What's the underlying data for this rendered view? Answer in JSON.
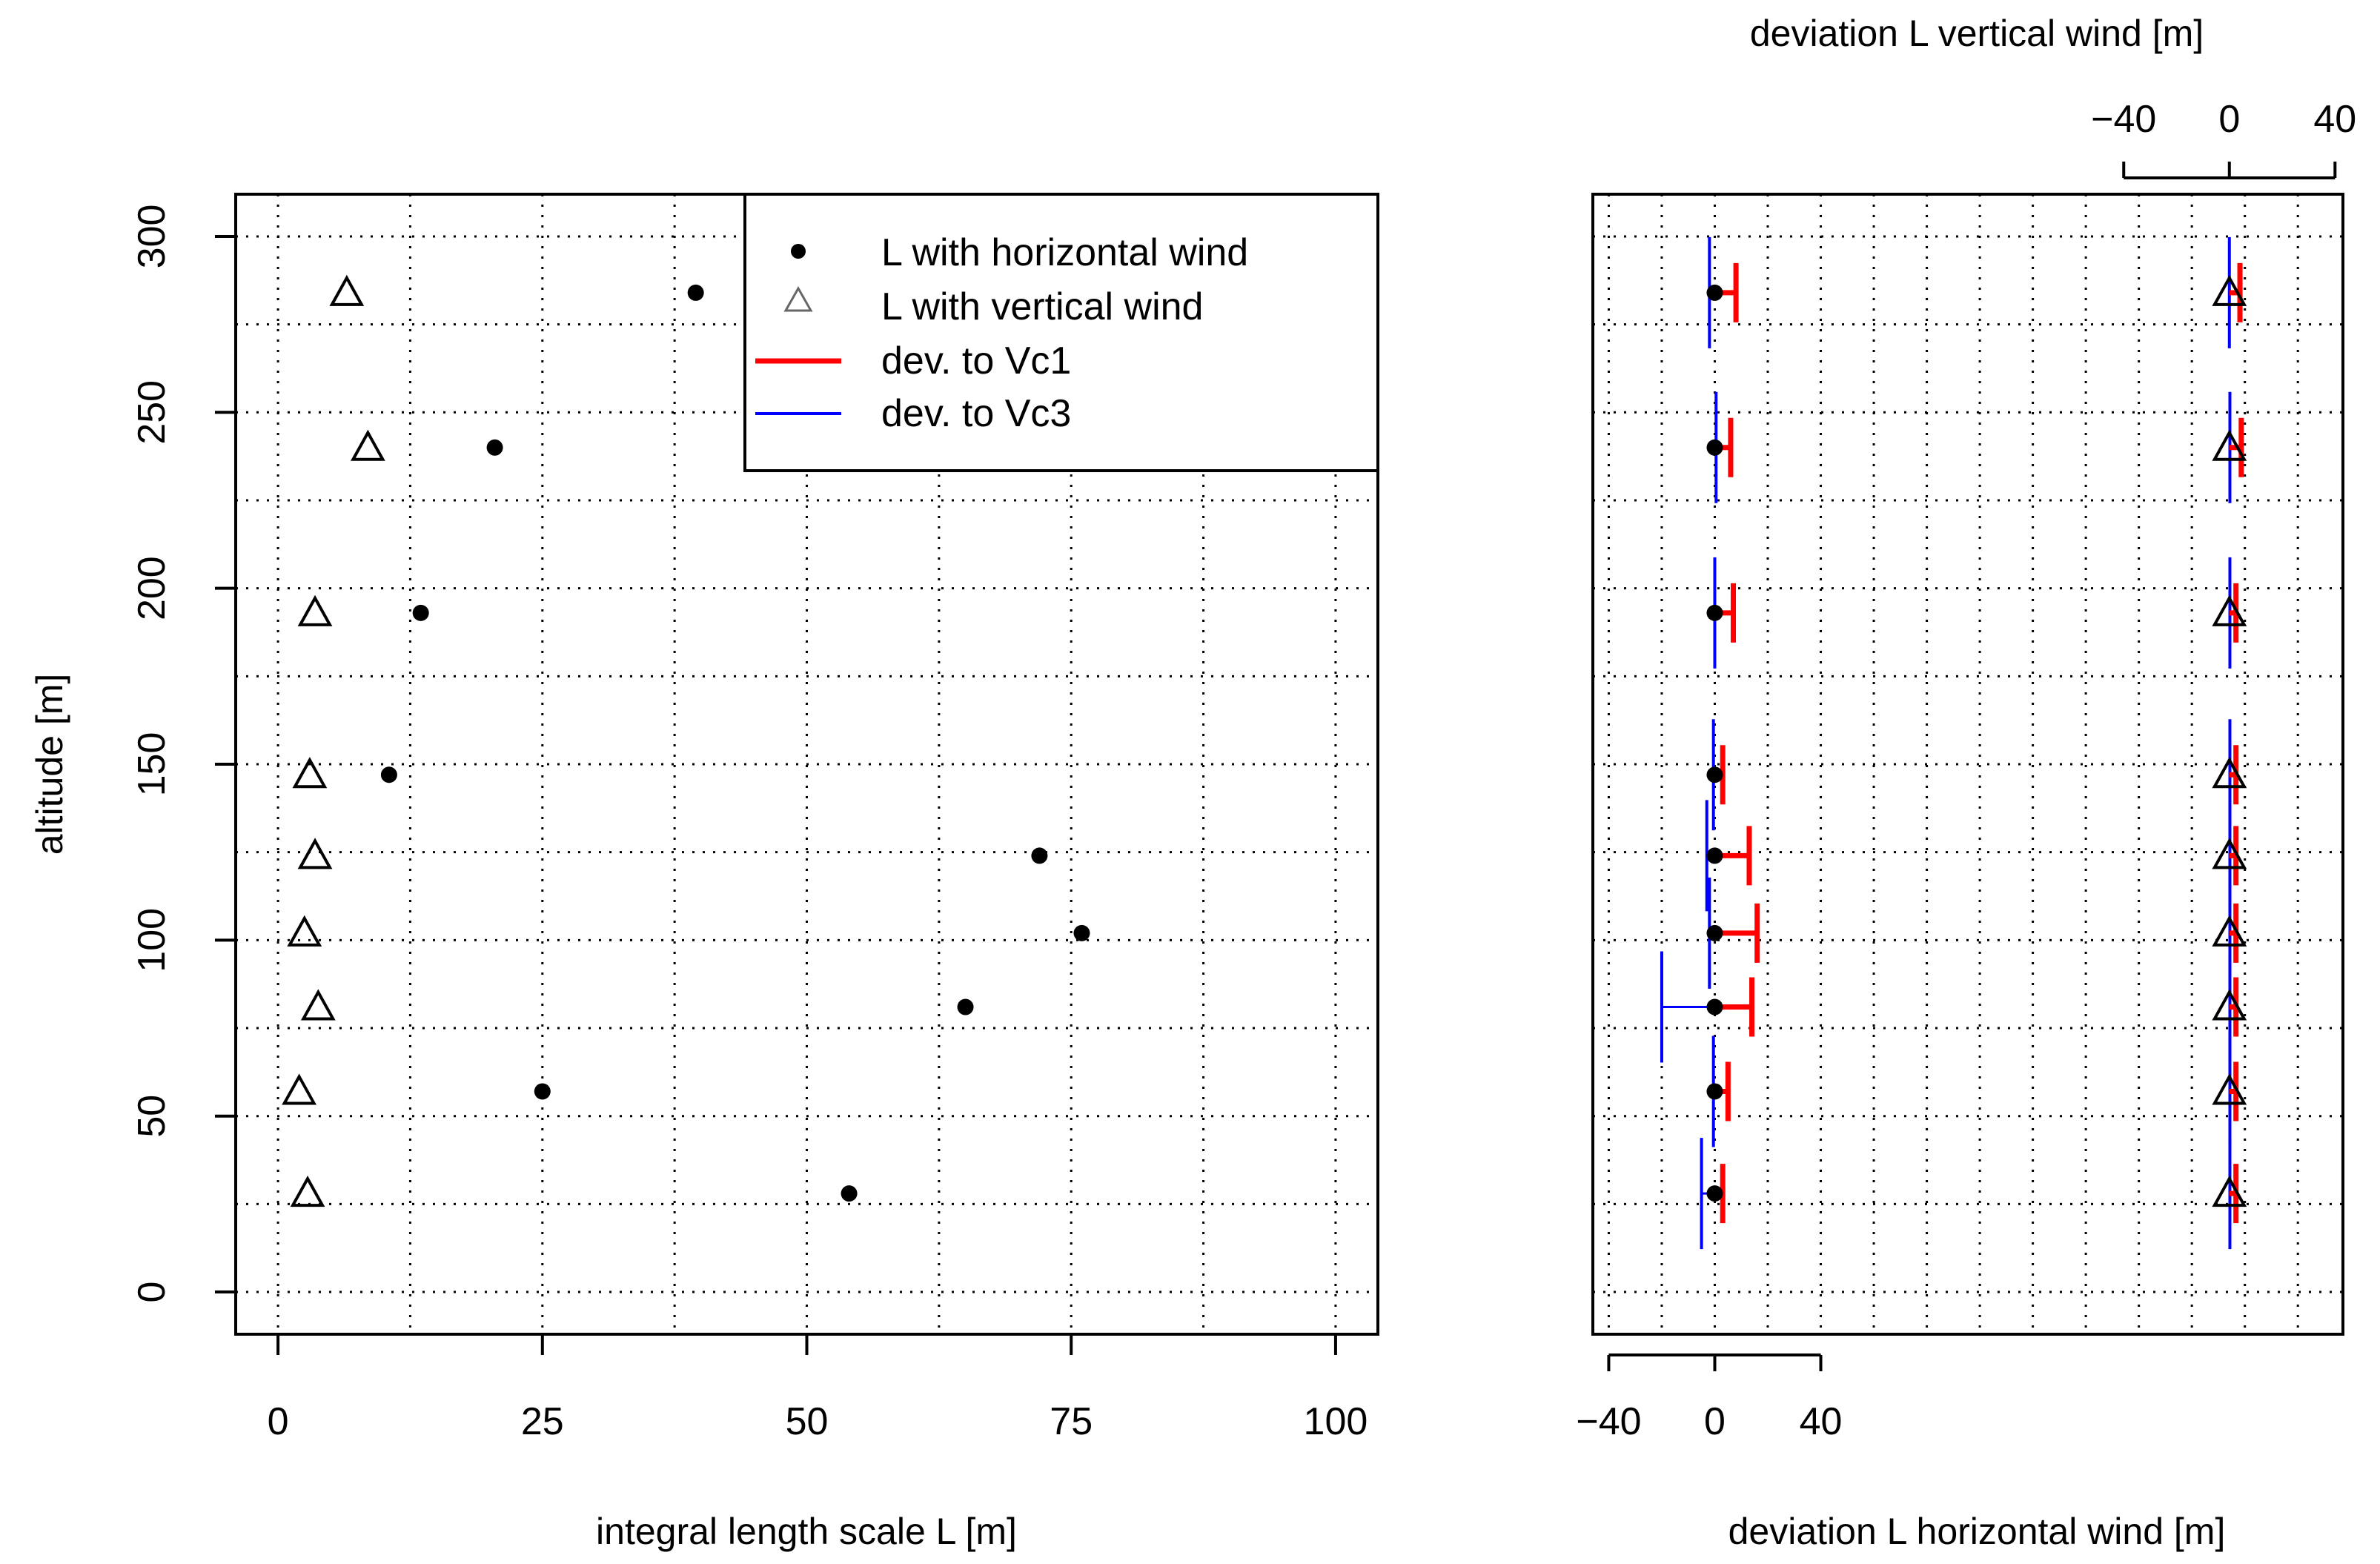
{
  "chart_data": [
    {
      "type": "scatter",
      "title": "",
      "xlabel": "integral length scale L [m]",
      "ylabel": "altitude [m]",
      "xlim": [
        -4,
        104
      ],
      "ylim": [
        -12,
        312
      ],
      "x_ticks": [
        0,
        25,
        50,
        75,
        100
      ],
      "y_ticks": [
        0,
        50,
        100,
        150,
        200,
        250,
        300
      ],
      "x_tick_labels": [
        "0",
        "25",
        "50",
        "75",
        "100"
      ],
      "y_tick_labels": [
        "0",
        "50",
        "100",
        "150",
        "200",
        "250",
        "300"
      ],
      "grid": true,
      "legend_position": "top-right",
      "series": [
        {
          "name": "L with horizontal wind",
          "marker": "filled-circle",
          "color": "#000000",
          "points": [
            {
              "x": 39.5,
              "y": 284
            },
            {
              "x": 20.5,
              "y": 240
            },
            {
              "x": 13.5,
              "y": 193
            },
            {
              "x": 10.5,
              "y": 147
            },
            {
              "x": 72,
              "y": 124
            },
            {
              "x": 76,
              "y": 102
            },
            {
              "x": 65,
              "y": 81
            },
            {
              "x": 25,
              "y": 57
            },
            {
              "x": 54,
              "y": 28
            }
          ]
        },
        {
          "name": "L with vertical wind",
          "marker": "open-triangle",
          "color": "#000000",
          "points": [
            {
              "x": 6.5,
              "y": 284
            },
            {
              "x": 8.5,
              "y": 240
            },
            {
              "x": 3.5,
              "y": 193
            },
            {
              "x": 3.0,
              "y": 147
            },
            {
              "x": 3.5,
              "y": 124
            },
            {
              "x": 2.5,
              "y": 102
            },
            {
              "x": 3.8,
              "y": 81
            },
            {
              "x": 2.0,
              "y": 57
            },
            {
              "x": 2.8,
              "y": 28
            }
          ]
        }
      ],
      "legend": [
        {
          "label": "L with horizontal wind",
          "symbol": "filled-circle",
          "color": "#000000"
        },
        {
          "label": "L with vertical wind",
          "symbol": "open-triangle",
          "color": "#666666"
        },
        {
          "label": "dev. to Vc1",
          "symbol": "thick-line",
          "color": "#ff0000"
        },
        {
          "label": "dev. to Vc3",
          "symbol": "thin-line",
          "color": "#0000ff"
        }
      ]
    },
    {
      "type": "errorbar",
      "title": "",
      "xlabel": "deviation L horizontal wind [m]",
      "x2label": "deviation L vertical wind [m]",
      "ylim": [
        -12,
        312
      ],
      "grid": true,
      "bottom_axis": {
        "lim": [
          -46,
          237
        ],
        "ticks": [
          -40,
          0,
          40
        ],
        "tick_labels": [
          "-40",
          "0",
          "40"
        ]
      },
      "top_axis": {
        "lim": [
          -241,
          43
        ],
        "ticks": [
          -40,
          0,
          40
        ],
        "tick_labels": [
          "-40",
          "0",
          "40"
        ]
      },
      "vc1_color": "#ff0000",
      "vc3_color": "#0000ff",
      "horizontal": [
        {
          "y": 284,
          "vc1": 8,
          "vc3": -2
        },
        {
          "y": 240,
          "vc1": 6,
          "vc3": 0.5
        },
        {
          "y": 193,
          "vc1": 7,
          "vc3": 0
        },
        {
          "y": 147,
          "vc1": 3,
          "vc3": -0.5
        },
        {
          "y": 124,
          "vc1": 13,
          "vc3": -3
        },
        {
          "y": 102,
          "vc1": 16,
          "vc3": -2
        },
        {
          "y": 81,
          "vc1": 14,
          "vc3": -20
        },
        {
          "y": 57,
          "vc1": 5,
          "vc3": -0.5
        },
        {
          "y": 28,
          "vc1": 3,
          "vc3": -5
        }
      ],
      "vertical": [
        {
          "y": 284,
          "vc1": 4,
          "vc3": 0
        },
        {
          "y": 240,
          "vc1": 4.5,
          "vc3": 0.2
        },
        {
          "y": 193,
          "vc1": 2.5,
          "vc3": 0.2
        },
        {
          "y": 147,
          "vc1": 2.5,
          "vc3": 0.2
        },
        {
          "y": 124,
          "vc1": 2.5,
          "vc3": 0.2
        },
        {
          "y": 102,
          "vc1": 2.5,
          "vc3": 0.2
        },
        {
          "y": 81,
          "vc1": 2.5,
          "vc3": 0.2
        },
        {
          "y": 57,
          "vc1": 2.5,
          "vc3": 0.2
        },
        {
          "y": 28,
          "vc1": 2.5,
          "vc3": 0.2
        }
      ]
    }
  ]
}
